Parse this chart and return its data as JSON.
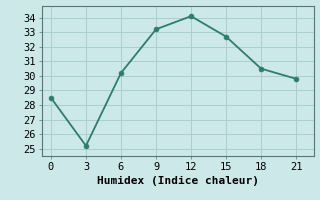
{
  "x": [
    0,
    3,
    6,
    9,
    12,
    15,
    18,
    21
  ],
  "y": [
    28.5,
    25.2,
    30.2,
    33.2,
    34.1,
    32.7,
    30.5,
    29.8
  ],
  "line_color": "#2d7d6e",
  "marker_color": "#2d7d6e",
  "bg_color": "#cce8e8",
  "grid_color": "#aacfcf",
  "xlabel": "Humidex (Indice chaleur)",
  "xlim": [
    -0.8,
    22.5
  ],
  "ylim": [
    24.5,
    34.8
  ],
  "xticks": [
    0,
    3,
    6,
    9,
    12,
    15,
    18,
    21
  ],
  "yticks": [
    25,
    26,
    27,
    28,
    29,
    30,
    31,
    32,
    33,
    34
  ],
  "xlabel_fontsize": 8,
  "tick_fontsize": 7.5,
  "marker_size": 3.5,
  "line_width": 1.3
}
